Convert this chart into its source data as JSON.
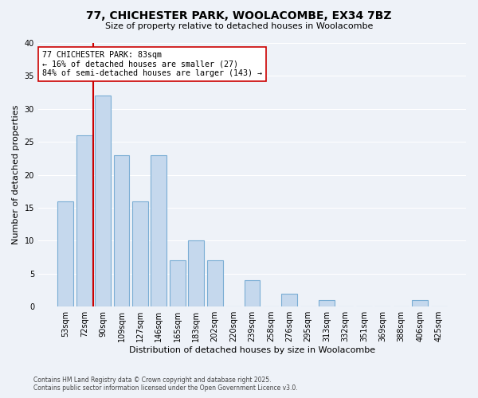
{
  "title": "77, CHICHESTER PARK, WOOLACOMBE, EX34 7BZ",
  "subtitle": "Size of property relative to detached houses in Woolacombe",
  "xlabel": "Distribution of detached houses by size in Woolacombe",
  "ylabel": "Number of detached properties",
  "categories": [
    "53sqm",
    "72sqm",
    "90sqm",
    "109sqm",
    "127sqm",
    "146sqm",
    "165sqm",
    "183sqm",
    "202sqm",
    "220sqm",
    "239sqm",
    "258sqm",
    "276sqm",
    "295sqm",
    "313sqm",
    "332sqm",
    "351sqm",
    "369sqm",
    "388sqm",
    "406sqm",
    "425sqm"
  ],
  "values": [
    16,
    26,
    32,
    23,
    16,
    23,
    7,
    10,
    7,
    0,
    4,
    0,
    2,
    0,
    1,
    0,
    0,
    0,
    0,
    1,
    0
  ],
  "bar_color": "#c5d8ed",
  "bar_edge_color": "#7aadd4",
  "marker_line_color": "#cc0000",
  "annotation_line1": "77 CHICHESTER PARK: 83sqm",
  "annotation_line2": "← 16% of detached houses are smaller (27)",
  "annotation_line3": "84% of semi-detached houses are larger (143) →",
  "annotation_box_color": "#ffffff",
  "annotation_box_edge": "#cc0000",
  "ylim": [
    0,
    40
  ],
  "yticks": [
    0,
    5,
    10,
    15,
    20,
    25,
    30,
    35,
    40
  ],
  "background_color": "#eef2f8",
  "grid_color": "#ffffff",
  "footer_line1": "Contains HM Land Registry data © Crown copyright and database right 2025.",
  "footer_line2": "Contains public sector information licensed under the Open Government Licence v3.0."
}
